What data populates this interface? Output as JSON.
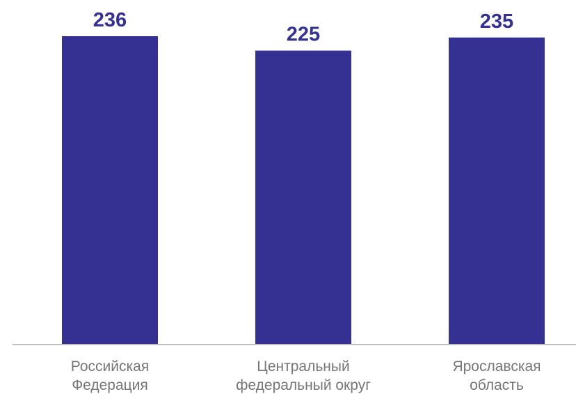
{
  "chart_data": {
    "type": "bar",
    "categories": [
      [
        "Российская",
        "Федерация"
      ],
      [
        "Центральный",
        "федеральный округ"
      ],
      [
        "Ярославская",
        "область"
      ]
    ],
    "values": [
      236,
      225,
      235
    ],
    "ylim": [
      0,
      236
    ],
    "grid": false,
    "legend": "none",
    "colors": {
      "bar": "#353193",
      "value_label": "#353193",
      "category_label": "#767676",
      "axis": "#bfbfbf"
    }
  }
}
